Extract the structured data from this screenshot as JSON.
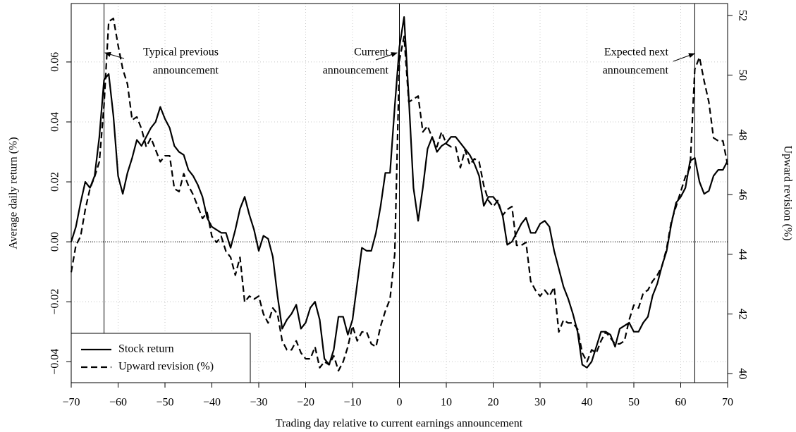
{
  "chart_data": {
    "type": "line",
    "xlabel": "Trading day relative to current earnings announcement",
    "ylabel": "Average daily return (%)",
    "y2label": "Upward revision (%)",
    "x": [
      -70,
      -69,
      -68,
      -67,
      -66,
      -65,
      -64,
      -63,
      -62,
      -61,
      -60,
      -59,
      -58,
      -57,
      -56,
      -55,
      -54,
      -53,
      -52,
      -51,
      -50,
      -49,
      -48,
      -47,
      -46,
      -45,
      -44,
      -43,
      -42,
      -41,
      -40,
      -39,
      -38,
      -37,
      -36,
      -35,
      -34,
      -33,
      -32,
      -31,
      -30,
      -29,
      -28,
      -27,
      -26,
      -25,
      -24,
      -23,
      -22,
      -21,
      -20,
      -19,
      -18,
      -17,
      -16,
      -15,
      -14,
      -13,
      -12,
      -11,
      -10,
      -9,
      -8,
      -7,
      -6,
      -5,
      -4,
      -3,
      -2,
      -1,
      0,
      1,
      2,
      3,
      4,
      5,
      6,
      7,
      8,
      9,
      10,
      11,
      12,
      13,
      14,
      15,
      16,
      17,
      18,
      19,
      20,
      21,
      22,
      23,
      24,
      25,
      26,
      27,
      28,
      29,
      30,
      31,
      32,
      33,
      34,
      35,
      36,
      37,
      38,
      39,
      40,
      41,
      42,
      43,
      44,
      45,
      46,
      47,
      48,
      49,
      50,
      51,
      52,
      53,
      54,
      55,
      56,
      57,
      58,
      59,
      60,
      61,
      62,
      63,
      64,
      65,
      66,
      67,
      68,
      69,
      70
    ],
    "series": [
      {
        "name": "Stock return",
        "color": "#000000",
        "line_style": "solid",
        "axis": "y",
        "values": [
          0.0,
          0.005,
          0.013,
          0.02,
          0.018,
          0.022,
          0.035,
          0.054,
          0.056,
          0.042,
          0.022,
          0.016,
          0.023,
          0.028,
          0.034,
          0.032,
          0.035,
          0.038,
          0.04,
          0.045,
          0.041,
          0.038,
          0.032,
          0.03,
          0.029,
          0.024,
          0.022,
          0.019,
          0.015,
          0.008,
          0.005,
          0.004,
          0.003,
          0.003,
          -0.002,
          0.004,
          0.011,
          0.015,
          0.009,
          0.004,
          -0.003,
          0.002,
          0.001,
          -0.005,
          -0.018,
          -0.029,
          -0.026,
          -0.024,
          -0.021,
          -0.029,
          -0.027,
          -0.022,
          -0.02,
          -0.026,
          -0.039,
          -0.041,
          -0.036,
          -0.025,
          -0.025,
          -0.031,
          -0.026,
          -0.014,
          -0.002,
          -0.003,
          -0.003,
          0.003,
          0.012,
          0.023,
          0.023,
          0.045,
          0.065,
          0.075,
          0.048,
          0.018,
          0.007,
          0.018,
          0.031,
          0.035,
          0.03,
          0.032,
          0.033,
          0.035,
          0.035,
          0.033,
          0.031,
          0.029,
          0.026,
          0.022,
          0.012,
          0.015,
          0.015,
          0.013,
          0.009,
          -0.001,
          0.0,
          0.003,
          0.006,
          0.008,
          0.003,
          0.003,
          0.006,
          0.007,
          0.005,
          -0.003,
          -0.009,
          -0.015,
          -0.019,
          -0.024,
          -0.03,
          -0.041,
          -0.042,
          -0.04,
          -0.035,
          -0.03,
          -0.03,
          -0.031,
          -0.035,
          -0.029,
          -0.028,
          -0.027,
          -0.03,
          -0.03,
          -0.027,
          -0.025,
          -0.018,
          -0.014,
          -0.008,
          -0.003,
          0.006,
          0.013,
          0.015,
          0.018,
          0.027,
          0.028,
          0.02,
          0.016,
          0.017,
          0.022,
          0.024,
          0.024,
          0.027
        ]
      },
      {
        "name": "Upward revision (%)",
        "color": "#000000",
        "line_style": "dashed",
        "axis": "y2",
        "values": [
          43.4,
          44.3,
          44.6,
          45.5,
          46.2,
          46.6,
          47.1,
          49.0,
          51.8,
          51.9,
          51.0,
          50.2,
          49.7,
          48.5,
          48.6,
          48.2,
          47.6,
          47.9,
          47.5,
          47.1,
          47.3,
          47.3,
          46.2,
          46.1,
          46.7,
          46.3,
          46.0,
          45.6,
          45.2,
          45.4,
          44.6,
          44.4,
          44.6,
          44.1,
          43.9,
          43.3,
          43.9,
          42.4,
          42.6,
          42.5,
          42.6,
          42.0,
          41.7,
          42.2,
          42.0,
          41.1,
          40.8,
          40.8,
          41.1,
          40.7,
          40.5,
          40.5,
          40.9,
          40.2,
          40.4,
          40.3,
          40.6,
          40.1,
          40.4,
          40.9,
          41.6,
          41.1,
          41.4,
          41.4,
          41.0,
          40.9,
          41.6,
          42.1,
          42.5,
          44.0,
          50.5,
          51.3,
          49.1,
          49.2,
          49.3,
          48.1,
          48.3,
          47.9,
          47.6,
          48.1,
          47.7,
          47.6,
          47.6,
          46.9,
          47.5,
          47.0,
          47.2,
          47.1,
          46.3,
          45.8,
          45.6,
          45.8,
          45.3,
          45.5,
          45.6,
          44.3,
          44.3,
          44.4,
          43.1,
          42.8,
          42.6,
          42.8,
          42.6,
          42.9,
          41.4,
          41.8,
          41.7,
          41.7,
          41.5,
          40.7,
          40.4,
          40.8,
          40.7,
          41.1,
          41.4,
          41.2,
          41.0,
          41.0,
          41.1,
          41.8,
          42.3,
          42.2,
          42.7,
          42.8,
          43.1,
          43.3,
          43.6,
          44.2,
          45.1,
          45.6,
          46.1,
          46.6,
          46.9,
          50.2,
          50.6,
          49.8,
          49.1,
          47.9,
          47.8,
          47.8,
          47.0
        ]
      }
    ],
    "xlim": [
      -70,
      70
    ],
    "xticks": [
      {
        "value": -70,
        "label": "−70"
      },
      {
        "value": -60,
        "label": "−60"
      },
      {
        "value": -50,
        "label": "−50"
      },
      {
        "value": -40,
        "label": "−40"
      },
      {
        "value": -30,
        "label": "−30"
      },
      {
        "value": -20,
        "label": "−20"
      },
      {
        "value": -10,
        "label": "−10"
      },
      0,
      10,
      20,
      30,
      40,
      50,
      60,
      70
    ],
    "ylim": [
      -0.047,
      0.0795
    ],
    "yticks": [
      {
        "value": -0.04,
        "label": "−0.04"
      },
      {
        "value": -0.02,
        "label": "−0.02"
      },
      {
        "value": 0,
        "label": "0.00"
      },
      0.02,
      0.04,
      0.06
    ],
    "y2lim": [
      39.7,
      52.4
    ],
    "y2ticks": [
      40,
      42,
      44,
      46,
      48,
      50,
      52
    ],
    "vlines": [
      -63,
      0,
      63
    ],
    "hlines": [
      0
    ],
    "grid": true,
    "legend": "lower left",
    "annotations": [
      {
        "lines": [
          "Typical previous",
          "announcement"
        ]
      },
      {
        "lines": [
          "Current",
          "announcement"
        ]
      },
      {
        "lines": [
          "Expected next",
          "announcement"
        ]
      }
    ]
  }
}
